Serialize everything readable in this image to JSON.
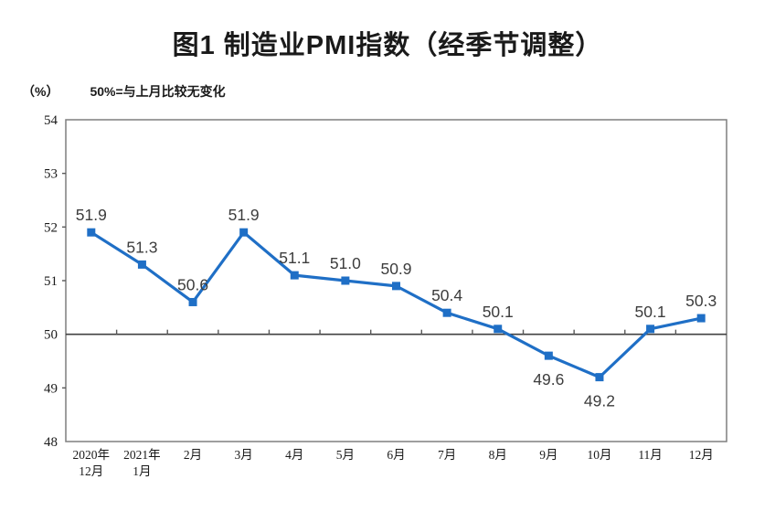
{
  "title": "图1 制造业PMI指数（经季节调整）",
  "chart_data": {
    "type": "line",
    "title": "图1 制造业PMI指数（经季节调整）",
    "unit_label": "（%）",
    "note": "50%=与上月比较无变化",
    "categories": [
      [
        "2020年",
        "12月"
      ],
      [
        "2021年",
        "1月"
      ],
      [
        "2月"
      ],
      [
        "3月"
      ],
      [
        "4月"
      ],
      [
        "5月"
      ],
      [
        "6月"
      ],
      [
        "7月"
      ],
      [
        "8月"
      ],
      [
        "9月"
      ],
      [
        "10月"
      ],
      [
        "11月"
      ],
      [
        "12月"
      ]
    ],
    "values": [
      51.9,
      51.3,
      50.6,
      51.9,
      51.1,
      51.0,
      50.9,
      50.4,
      50.1,
      49.6,
      49.2,
      50.1,
      50.3
    ],
    "data_labels": [
      "51.9",
      "51.3",
      "50.6",
      "51.9",
      "51.1",
      "51.0",
      "50.9",
      "50.4",
      "50.1",
      "49.6",
      "49.2",
      "50.1",
      "50.3"
    ],
    "label_side": [
      "above",
      "above",
      "above",
      "above",
      "above",
      "above",
      "above",
      "above",
      "above",
      "below",
      "below",
      "above",
      "above"
    ],
    "ylim": [
      48,
      54
    ],
    "ytick_step": 1,
    "yticks": [
      48,
      49,
      50,
      51,
      52,
      53,
      54
    ],
    "reference_y": 50,
    "grid": false,
    "legend": "none",
    "marker": "square",
    "colors": {
      "line": "#1F6FC6",
      "marker": "#1F6FC6",
      "data_label": "#3d3d3d",
      "axis_box": "#7f7f7f",
      "reference_line": "#404040",
      "tick": "#595959",
      "axis_text": "#1a1a1a"
    }
  }
}
